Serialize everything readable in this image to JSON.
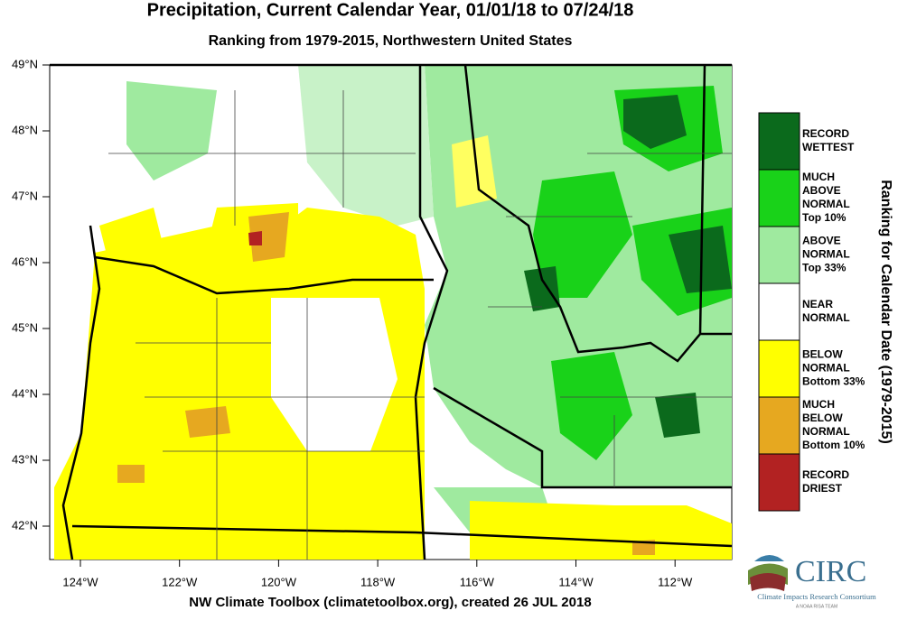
{
  "map": {
    "title": "Precipitation, Current Calendar Year, 01/01/18 to 07/24/18",
    "subtitle": "Ranking from 1979-2015, Northwestern United States",
    "lon_ticks": [
      "124°W",
      "122°W",
      "120°W",
      "118°W",
      "116°W",
      "114°W",
      "112°W"
    ],
    "lat_ticks": [
      "49°N",
      "48°N",
      "47°N",
      "46°N",
      "45°N",
      "44°N",
      "43°N",
      "42°N"
    ],
    "footer": "NW Climate Toolbox (climatetoolbox.org), created 26 JUL 2018"
  },
  "legend": {
    "title": "Ranking for Calendar Date (1979-2015)",
    "items": [
      {
        "lines": [
          "RECORD",
          "WETTEST"
        ],
        "color": "#0b6a1c"
      },
      {
        "lines": [
          "MUCH",
          "ABOVE",
          "NORMAL",
          "Top 10%"
        ],
        "color": "#19d219"
      },
      {
        "lines": [
          "ABOVE",
          "NORMAL",
          "Top 33%"
        ],
        "color": "#9fea9f"
      },
      {
        "lines": [
          "NEAR",
          "NORMAL"
        ],
        "color": "#ffffff"
      },
      {
        "lines": [
          "BELOW",
          "NORMAL",
          "Bottom 33%"
        ],
        "color": "#ffff00"
      },
      {
        "lines": [
          "MUCH",
          "BELOW",
          "NORMAL",
          "Bottom 10%"
        ],
        "color": "#e6a820"
      },
      {
        "lines": [
          "RECORD",
          "DRIEST"
        ],
        "color": "#b22222"
      }
    ]
  },
  "logo": {
    "name": "CIRC",
    "full_name": "Climate Impacts Research Consortium",
    "tagline": "A NOAA RISA TEAM"
  }
}
